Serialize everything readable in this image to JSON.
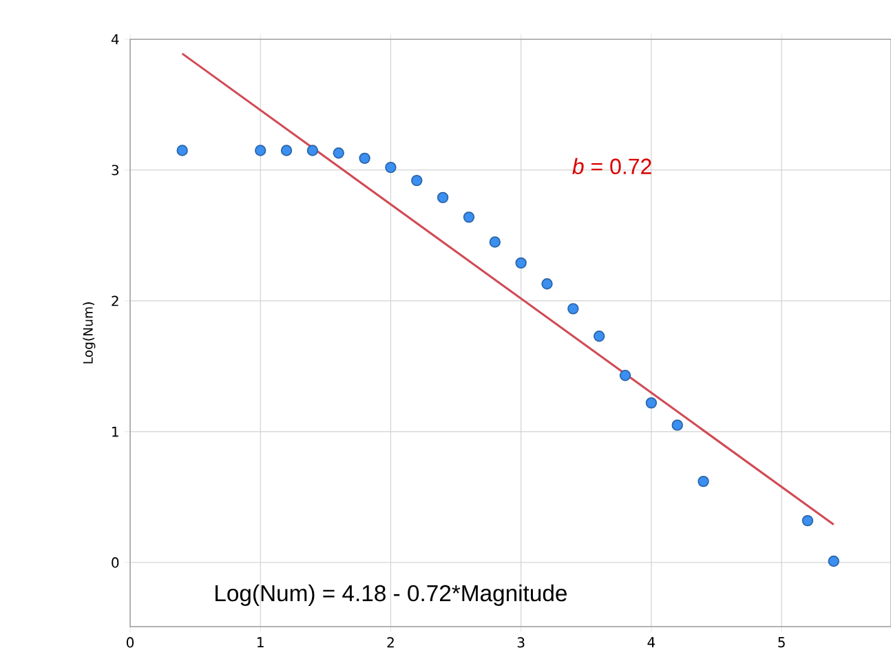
{
  "chart_data": {
    "type": "scatter",
    "ylabel": "Log(Num)",
    "xlim": [
      0,
      5.84
    ],
    "ylim": [
      -0.49,
      4
    ],
    "xticks": [
      0,
      1,
      2,
      3,
      4,
      5
    ],
    "yticks": [
      0,
      1,
      2,
      3,
      4
    ],
    "grid": true,
    "series": [
      {
        "color": "#3b8ff0",
        "x": [
          0.4,
          1.0,
          1.2,
          1.4,
          1.6,
          1.8,
          2.0,
          2.2,
          2.4,
          2.6,
          2.8,
          3.0,
          3.2,
          3.4,
          3.6,
          3.8,
          4.0,
          4.2,
          4.4,
          5.2,
          5.4
        ],
        "values": [
          3.15,
          3.15,
          3.15,
          3.15,
          3.13,
          3.09,
          3.02,
          2.92,
          2.79,
          2.64,
          2.45,
          2.29,
          2.13,
          1.94,
          1.73,
          1.43,
          1.22,
          1.05,
          0.62,
          0.32,
          0.01
        ]
      },
      {
        "type": "line",
        "color": "#d04a55",
        "x": [
          0.4,
          5.4
        ],
        "values": [
          3.89,
          0.29
        ]
      }
    ],
    "annotations": [
      "*b* = 0.72",
      "Log(Num) = 4.18 - 0.72*Magnitude"
    ]
  }
}
